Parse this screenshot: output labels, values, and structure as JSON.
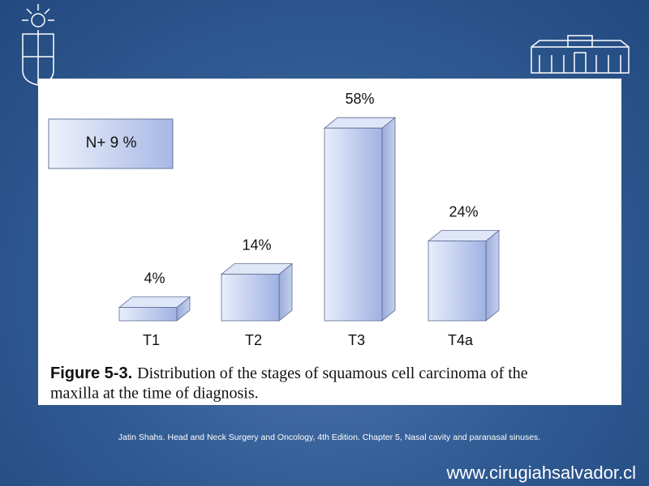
{
  "chart_data": {
    "type": "bar",
    "categories": [
      "T1",
      "T2",
      "T3",
      "T4a"
    ],
    "values": [
      4,
      14,
      58,
      24
    ],
    "value_labels": [
      "4%",
      "14%",
      "58%",
      "24%"
    ],
    "color": "#b4c3ea",
    "annotation": "N+ 9 %",
    "figure_label": "Figure 5-3.",
    "caption": [
      "Distribution of the stages of squamous cell carcinoma of the",
      "maxilla at the time of diagnosis."
    ]
  },
  "citation": "Jatin Shahs. Head and Neck Surgery and Oncology, 4th Edition. Chapter 5, Nasal cavity and paranasal sinuses.",
  "website": "www.cirugiahsalvador.cl"
}
